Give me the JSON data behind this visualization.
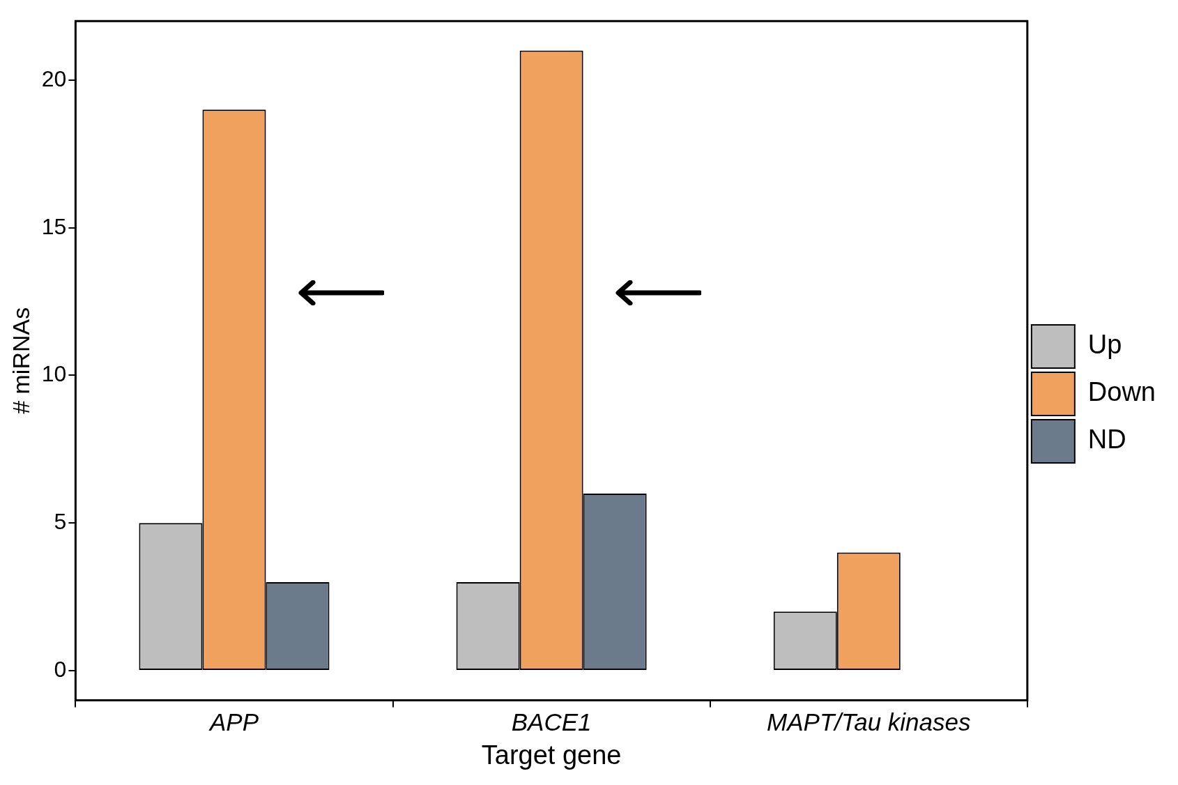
{
  "chart_data": {
    "type": "bar",
    "xlabel": "Target gene",
    "ylabel": "# miRNAs",
    "categories": [
      "APP",
      "BACE1",
      "MAPT/Tau kinases"
    ],
    "series": [
      {
        "name": "Up",
        "color": "#bebebe",
        "values": [
          5,
          3,
          2
        ]
      },
      {
        "name": "Down",
        "color": "#f0a15e",
        "values": [
          19,
          21,
          4
        ]
      },
      {
        "name": "ND",
        "color": "#6b7b8b",
        "values": [
          3,
          6,
          0
        ]
      }
    ],
    "ylim": [
      -1,
      22
    ],
    "yticks": [
      0,
      5,
      10,
      15,
      20
    ],
    "grid": false,
    "legend": "right"
  }
}
